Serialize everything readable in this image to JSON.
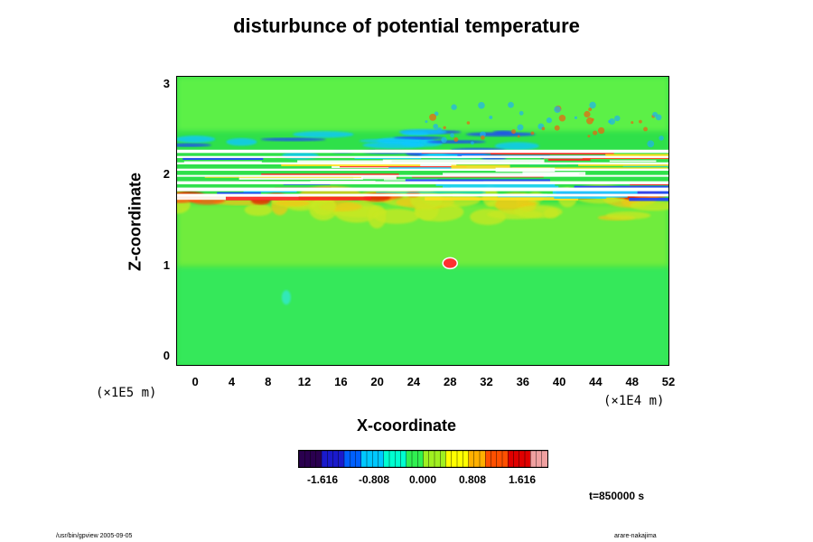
{
  "chart_data": {
    "type": "heatmap",
    "title": "disturbunce of potential temperature",
    "xlabel": "X-coordinate",
    "ylabel": "Z-coordinate",
    "xlim": [
      -2,
      52
    ],
    "ylim": [
      -0.1,
      3.1
    ],
    "x_ticks": [
      "0",
      "4",
      "8",
      "12",
      "16",
      "20",
      "24",
      "28",
      "32",
      "36",
      "40",
      "44",
      "48",
      "52"
    ],
    "y_ticks": [
      "0",
      "1",
      "2",
      "3"
    ],
    "x_unit": "(×1E4 m)",
    "y_unit": "(×1E5 m)",
    "colorbar": {
      "ticks": [
        "-1.616",
        "-0.808",
        "0.000",
        "0.808",
        "1.616"
      ],
      "range": [
        -2.0,
        2.0
      ],
      "colors": [
        "#2a004f",
        "#1a1acc",
        "#0060ff",
        "#00c8ff",
        "#00ffd0",
        "#30f050",
        "#a0f020",
        "#ffff00",
        "#ffb000",
        "#ff5000",
        "#e00000",
        "#f0a0a0"
      ]
    },
    "field_description": {
      "background_value": 0.0,
      "warm_anomaly_z": [
        1.5,
        1.8
      ],
      "cold_anomaly_z": [
        2.2,
        2.5
      ],
      "saturated_band_z": [
        1.75,
        2.3
      ]
    },
    "time_label": "t=850000 s"
  },
  "footer": {
    "left": "/usr/bin/gpview 2005-09-05",
    "right": "arare-nakajima"
  }
}
